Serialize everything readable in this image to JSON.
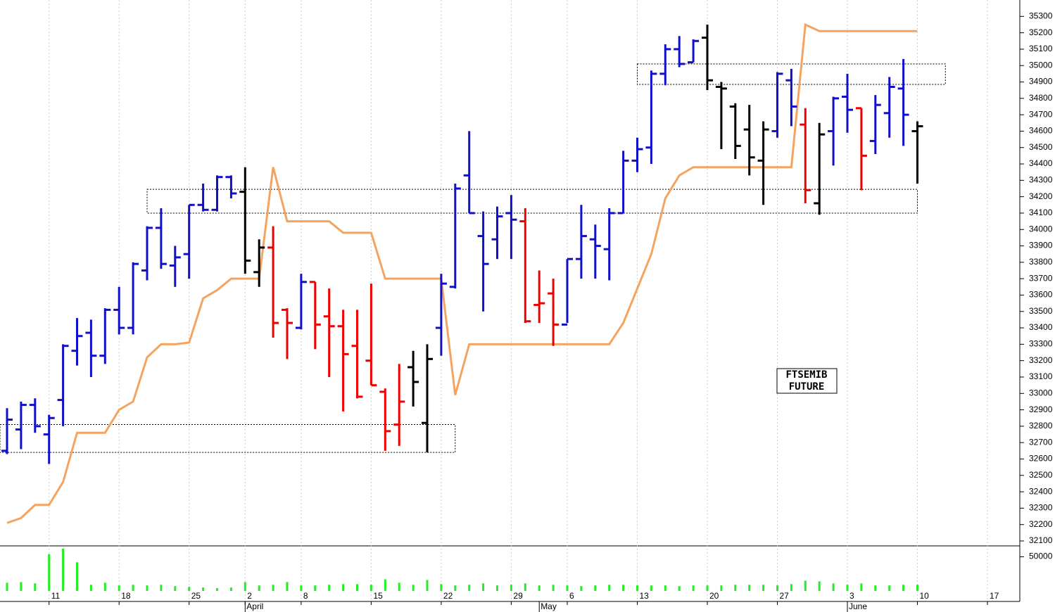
{
  "chart_data": {
    "type": "ohlc",
    "annotation": [
      "FTSEMIB",
      "FUTURE"
    ],
    "open": [
      32650,
      32780,
      32930,
      32750,
      32960,
      33260,
      33370,
      33230,
      33510,
      33400,
      33750,
      34010,
      33780,
      33850,
      34150,
      34120,
      34320,
      34230,
      33740,
      33890,
      33510,
      33400,
      33680,
      33470,
      33410,
      33290,
      33200,
      33010,
      32810,
      33160,
      32820,
      33400,
      33650,
      34330,
      33960,
      33940,
      34100,
      34050,
      33540,
      33610,
      33420,
      33820,
      33940,
      33880,
      34100,
      34420,
      34500,
      34950,
      35100,
      35020,
      35170,
      34870,
      34750,
      34610,
      34420,
      34600,
      34910,
      34640,
      34160,
      34600,
      34810,
      34740,
      34540,
      34710,
      34860,
      34600
    ],
    "high": [
      32910,
      32950,
      32970,
      32870,
      33300,
      33460,
      33450,
      33520,
      33650,
      33800,
      34020,
      34130,
      33900,
      34150,
      34280,
      34330,
      34330,
      34380,
      33940,
      34020,
      33520,
      33730,
      33680,
      33640,
      33510,
      33510,
      33670,
      33030,
      33180,
      33260,
      33300,
      33730,
      34280,
      34600,
      34110,
      34140,
      34210,
      34130,
      33750,
      33700,
      33820,
      34150,
      34030,
      34130,
      34480,
      34560,
      34970,
      35130,
      35180,
      35160,
      35250,
      34900,
      34770,
      34760,
      34660,
      34960,
      34980,
      34740,
      34650,
      34810,
      34950,
      34740,
      34820,
      34930,
      35040,
      34660
    ],
    "low": [
      32630,
      32660,
      32760,
      32570,
      32800,
      33170,
      33100,
      33180,
      33360,
      33360,
      33690,
      33760,
      33650,
      33700,
      34110,
      34110,
      34190,
      33730,
      33650,
      33340,
      33210,
      33390,
      33270,
      33100,
      32890,
      32970,
      33050,
      32650,
      32680,
      32920,
      32640,
      33230,
      33640,
      34100,
      33500,
      33820,
      33820,
      33430,
      33430,
      33290,
      33430,
      33700,
      33700,
      33690,
      34100,
      34350,
      34400,
      34880,
      34990,
      35020,
      34850,
      34490,
      34430,
      34330,
      34150,
      34560,
      34630,
      34160,
      34090,
      34390,
      34590,
      34240,
      34460,
      34560,
      34510,
      34280
    ],
    "close": [
      32840,
      32930,
      32800,
      32850,
      33290,
      33350,
      33230,
      33510,
      33400,
      33790,
      34010,
      33790,
      33830,
      34150,
      34120,
      34320,
      34220,
      33810,
      33890,
      33430,
      33430,
      33680,
      33420,
      33410,
      33240,
      32980,
      33050,
      32770,
      32950,
      33070,
      33210,
      33670,
      34250,
      34100,
      33790,
      34080,
      34060,
      33440,
      33550,
      33420,
      33820,
      33960,
      33900,
      34100,
      34420,
      34490,
      34950,
      35100,
      35010,
      35150,
      34910,
      34860,
      34510,
      34440,
      34610,
      34950,
      34750,
      34240,
      34580,
      34800,
      34730,
      34450,
      34760,
      34870,
      34700,
      34630
    ],
    "colors": [
      "#1010c8",
      "#1010c8",
      "#1010c8",
      "#1010c8",
      "#1010c8",
      "#1010c8",
      "#1010c8",
      "#1010c8",
      "#1010c8",
      "#1010c8",
      "#1010c8",
      "#1010c8",
      "#1010c8",
      "#1010c8",
      "#1010c8",
      "#1010c8",
      "#1010c8",
      "#000000",
      "#000000",
      "#ee0000",
      "#ee0000",
      "#1010c8",
      "#ee0000",
      "#ee0000",
      "#ee0000",
      "#ee0000",
      "#ee0000",
      "#ee0000",
      "#ee0000",
      "#000000",
      "#000000",
      "#1010c8",
      "#1010c8",
      "#1010c8",
      "#1010c8",
      "#1010c8",
      "#1010c8",
      "#ee0000",
      "#ee0000",
      "#ee0000",
      "#1010c8",
      "#1010c8",
      "#1010c8",
      "#1010c8",
      "#1010c8",
      "#1010c8",
      "#1010c8",
      "#1010c8",
      "#1010c8",
      "#1010c8",
      "#000000",
      "#000000",
      "#000000",
      "#000000",
      "#000000",
      "#1010c8",
      "#1010c8",
      "#ee0000",
      "#000000",
      "#1010c8",
      "#1010c8",
      "#ee0000",
      "#1010c8",
      "#1010c8",
      "#1010c8",
      "#000000"
    ],
    "line": {
      "color": "#f5a460",
      "values": [
        32210,
        32240,
        32320,
        32320,
        32460,
        32760,
        32760,
        32760,
        32900,
        32950,
        33220,
        33300,
        33300,
        33310,
        33580,
        33630,
        33700,
        33700,
        33700,
        34380,
        34050,
        34050,
        34050,
        34050,
        33980,
        33980,
        33980,
        33700,
        33700,
        33700,
        33700,
        33700,
        32990,
        33300,
        33300,
        33300,
        33300,
        33300,
        33300,
        33300,
        33300,
        33300,
        33300,
        33300,
        33430,
        33640,
        33850,
        34190,
        34330,
        34380,
        34380,
        34380,
        34380,
        34380,
        34380,
        34380,
        34380,
        35250,
        35210,
        35210,
        35210,
        35210,
        35210,
        35210,
        35210,
        35210
      ]
    },
    "zones": [
      {
        "from": -1,
        "to": 32,
        "low": 32640,
        "high": 32810
      },
      {
        "from": 10,
        "to": 65,
        "low": 34100,
        "high": 34245
      },
      {
        "from": 45,
        "to": 67,
        "low": 34885,
        "high": 35010
      }
    ],
    "ylim": [
      32070,
      35400
    ],
    "yticks": [
      32100,
      32200,
      32300,
      32400,
      32500,
      32600,
      32700,
      32800,
      32900,
      33000,
      33100,
      33200,
      33300,
      33400,
      33500,
      33600,
      33700,
      33800,
      33900,
      34000,
      34100,
      34200,
      34300,
      34400,
      34500,
      34600,
      34700,
      34800,
      34900,
      35000,
      35100,
      35200,
      35300
    ],
    "volume": {
      "color": "#22ee22",
      "values": [
        12000,
        13000,
        11000,
        54000,
        62000,
        42000,
        9000,
        12000,
        8000,
        9000,
        8000,
        9000,
        7000,
        6000,
        5000,
        4000,
        5000,
        13000,
        8000,
        9000,
        13000,
        8000,
        8000,
        9000,
        10000,
        10000,
        9000,
        17000,
        12000,
        9000,
        16000,
        10000,
        8000,
        9000,
        11000,
        8000,
        9000,
        11000,
        8000,
        9000,
        8000,
        7000,
        8000,
        9000,
        9000,
        8000,
        8000,
        8000,
        7000,
        8000,
        8000,
        8000,
        9000,
        9000,
        9000,
        8000,
        10000,
        15000,
        14000,
        11000,
        9000,
        11000,
        8000,
        8000,
        9000,
        9000
      ],
      "ylim": [
        0,
        65000
      ],
      "yticks": [
        50000
      ]
    },
    "xticks": [
      {
        "value": 3,
        "label": "11"
      },
      {
        "value": 8,
        "label": "18"
      },
      {
        "value": 13,
        "label": "25"
      },
      {
        "value": 17,
        "label": "2"
      },
      {
        "value": 21,
        "label": "8"
      },
      {
        "value": 26,
        "label": "15"
      },
      {
        "value": 31,
        "label": "22"
      },
      {
        "value": 36,
        "label": "29"
      },
      {
        "value": 40,
        "label": "6"
      },
      {
        "value": 45,
        "label": "13"
      },
      {
        "value": 50,
        "label": "20"
      },
      {
        "value": 55,
        "label": "27"
      },
      {
        "value": 60,
        "label": "3"
      },
      {
        "value": 65,
        "label": "10"
      },
      {
        "value": 70,
        "label": "17"
      }
    ],
    "months": [
      {
        "value": 17,
        "label": "April"
      },
      {
        "value": 38,
        "label": "May"
      },
      {
        "value": 60,
        "label": "June"
      }
    ]
  }
}
